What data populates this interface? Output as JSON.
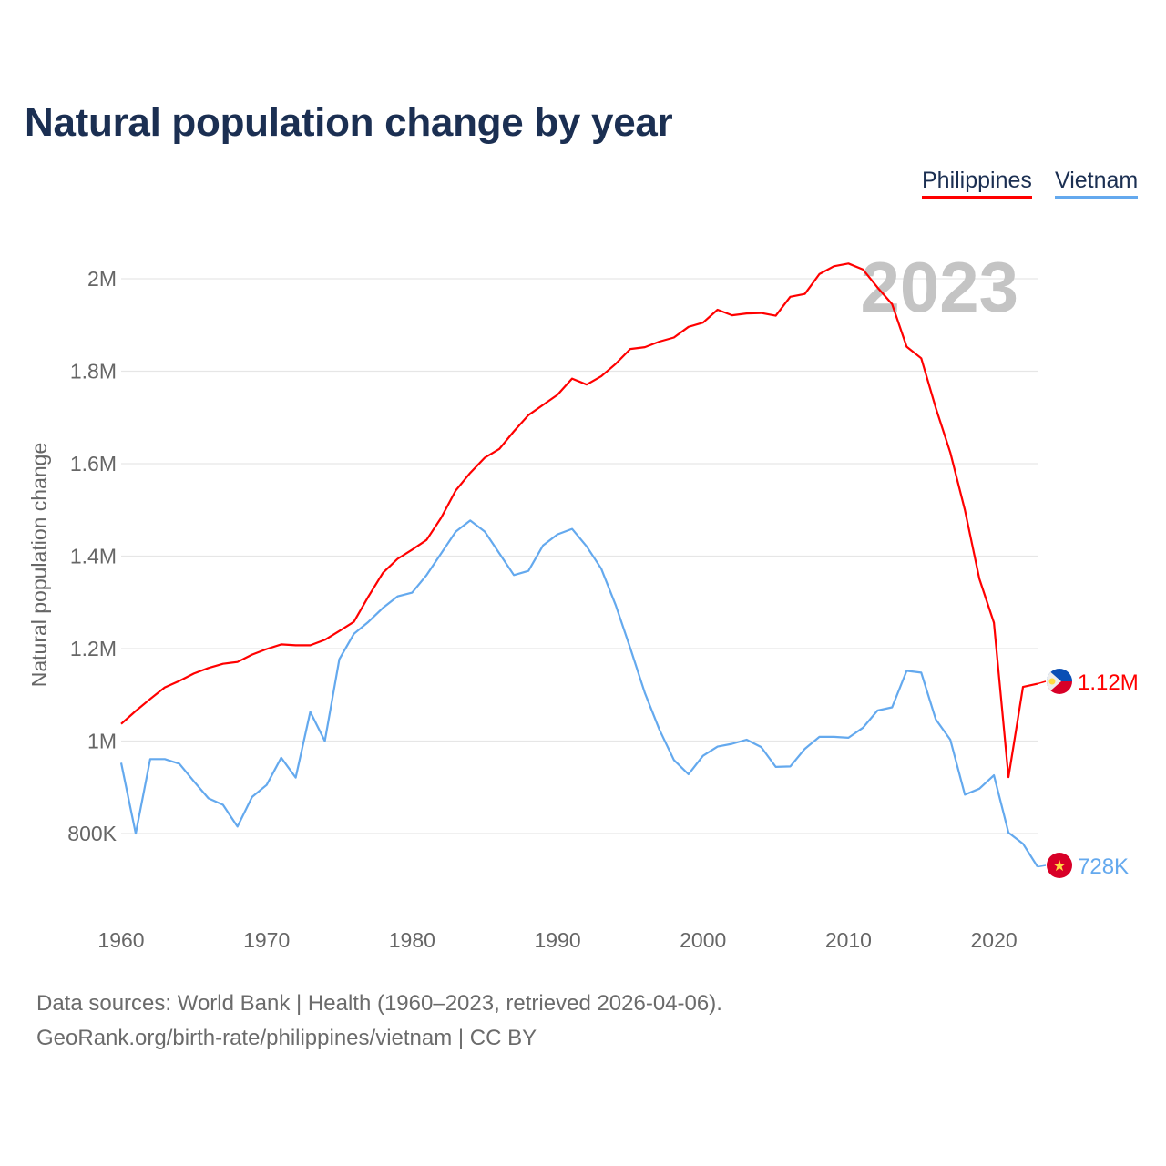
{
  "chart_data": {
    "type": "line",
    "title": "Natural population change by year",
    "ylabel": "Natural population change",
    "xlabel": "",
    "xlim": [
      1960,
      2023
    ],
    "ylim": [
      700000,
      2100000
    ],
    "x_ticks": [
      1960,
      1970,
      1980,
      1990,
      2000,
      2010,
      2020
    ],
    "x_tick_labels": [
      "1960",
      "1970",
      "1980",
      "1990",
      "2000",
      "2010",
      "2020"
    ],
    "y_ticks": [
      800000,
      1000000,
      1200000,
      1400000,
      1600000,
      1800000,
      2000000
    ],
    "y_tick_labels": [
      "800K",
      "1M",
      "1.2M",
      "1.4M",
      "1.6M",
      "1.8M",
      "2M"
    ],
    "grid": true,
    "legend_position": "top-right",
    "year_watermark": "2023",
    "x": [
      1960,
      1961,
      1962,
      1963,
      1964,
      1965,
      1966,
      1967,
      1968,
      1969,
      1970,
      1971,
      1972,
      1973,
      1974,
      1975,
      1976,
      1977,
      1978,
      1979,
      1980,
      1981,
      1982,
      1983,
      1984,
      1985,
      1986,
      1987,
      1988,
      1989,
      1990,
      1991,
      1992,
      1993,
      1994,
      1995,
      1996,
      1997,
      1998,
      1999,
      2000,
      2001,
      2002,
      2003,
      2004,
      2005,
      2006,
      2007,
      2008,
      2009,
      2010,
      2011,
      2012,
      2013,
      2014,
      2015,
      2016,
      2017,
      2018,
      2019,
      2020,
      2021,
      2022,
      2023
    ],
    "series": [
      {
        "name": "Philippines",
        "color": "#ff0000",
        "end_label": "1.12M",
        "flag": "philippines-flag",
        "values": [
          1037000,
          1065000,
          1091000,
          1116000,
          1130000,
          1146000,
          1158000,
          1167000,
          1171000,
          1187000,
          1199000,
          1209000,
          1207000,
          1207000,
          1219000,
          1238000,
          1258000,
          1313000,
          1364000,
          1394000,
          1414000,
          1435000,
          1483000,
          1542000,
          1580000,
          1613000,
          1632000,
          1670000,
          1705000,
          1727000,
          1749000,
          1784000,
          1771000,
          1789000,
          1816000,
          1848000,
          1852000,
          1864000,
          1873000,
          1896000,
          1905000,
          1933000,
          1921000,
          1925000,
          1926000,
          1920000,
          1961000,
          1967000,
          2010000,
          2027000,
          2033000,
          2020000,
          1981000,
          1945000,
          1853000,
          1828000,
          1721000,
          1624000,
          1500000,
          1351000,
          1256000,
          922000,
          1117000,
          1124000
        ]
      },
      {
        "name": "Vietnam",
        "color": "#64a9ee",
        "end_label": "728K",
        "flag": "vietnam-flag",
        "values": [
          953000,
          800000,
          961000,
          961000,
          951000,
          913000,
          876000,
          862000,
          815000,
          879000,
          905000,
          964000,
          921000,
          1063000,
          1000000,
          1177000,
          1232000,
          1258000,
          1288000,
          1313000,
          1321000,
          1359000,
          1406000,
          1453000,
          1477000,
          1453000,
          1406000,
          1359000,
          1368000,
          1423000,
          1447000,
          1459000,
          1421000,
          1373000,
          1294000,
          1201000,
          1104000,
          1025000,
          959000,
          928000,
          968000,
          988000,
          994000,
          1003000,
          987000,
          944000,
          945000,
          983000,
          1009000,
          1009000,
          1007000,
          1029000,
          1066000,
          1073000,
          1152000,
          1148000,
          1047000,
          1003000,
          884000,
          897000,
          926000,
          802000,
          778000,
          728000
        ]
      }
    ]
  },
  "footer": {
    "line1": "Data sources: World Bank | Health (1960–2023, retrieved 2026-04-06).",
    "line2": "GeoRank.org/birth-rate/philippines/vietnam | CC BY"
  }
}
